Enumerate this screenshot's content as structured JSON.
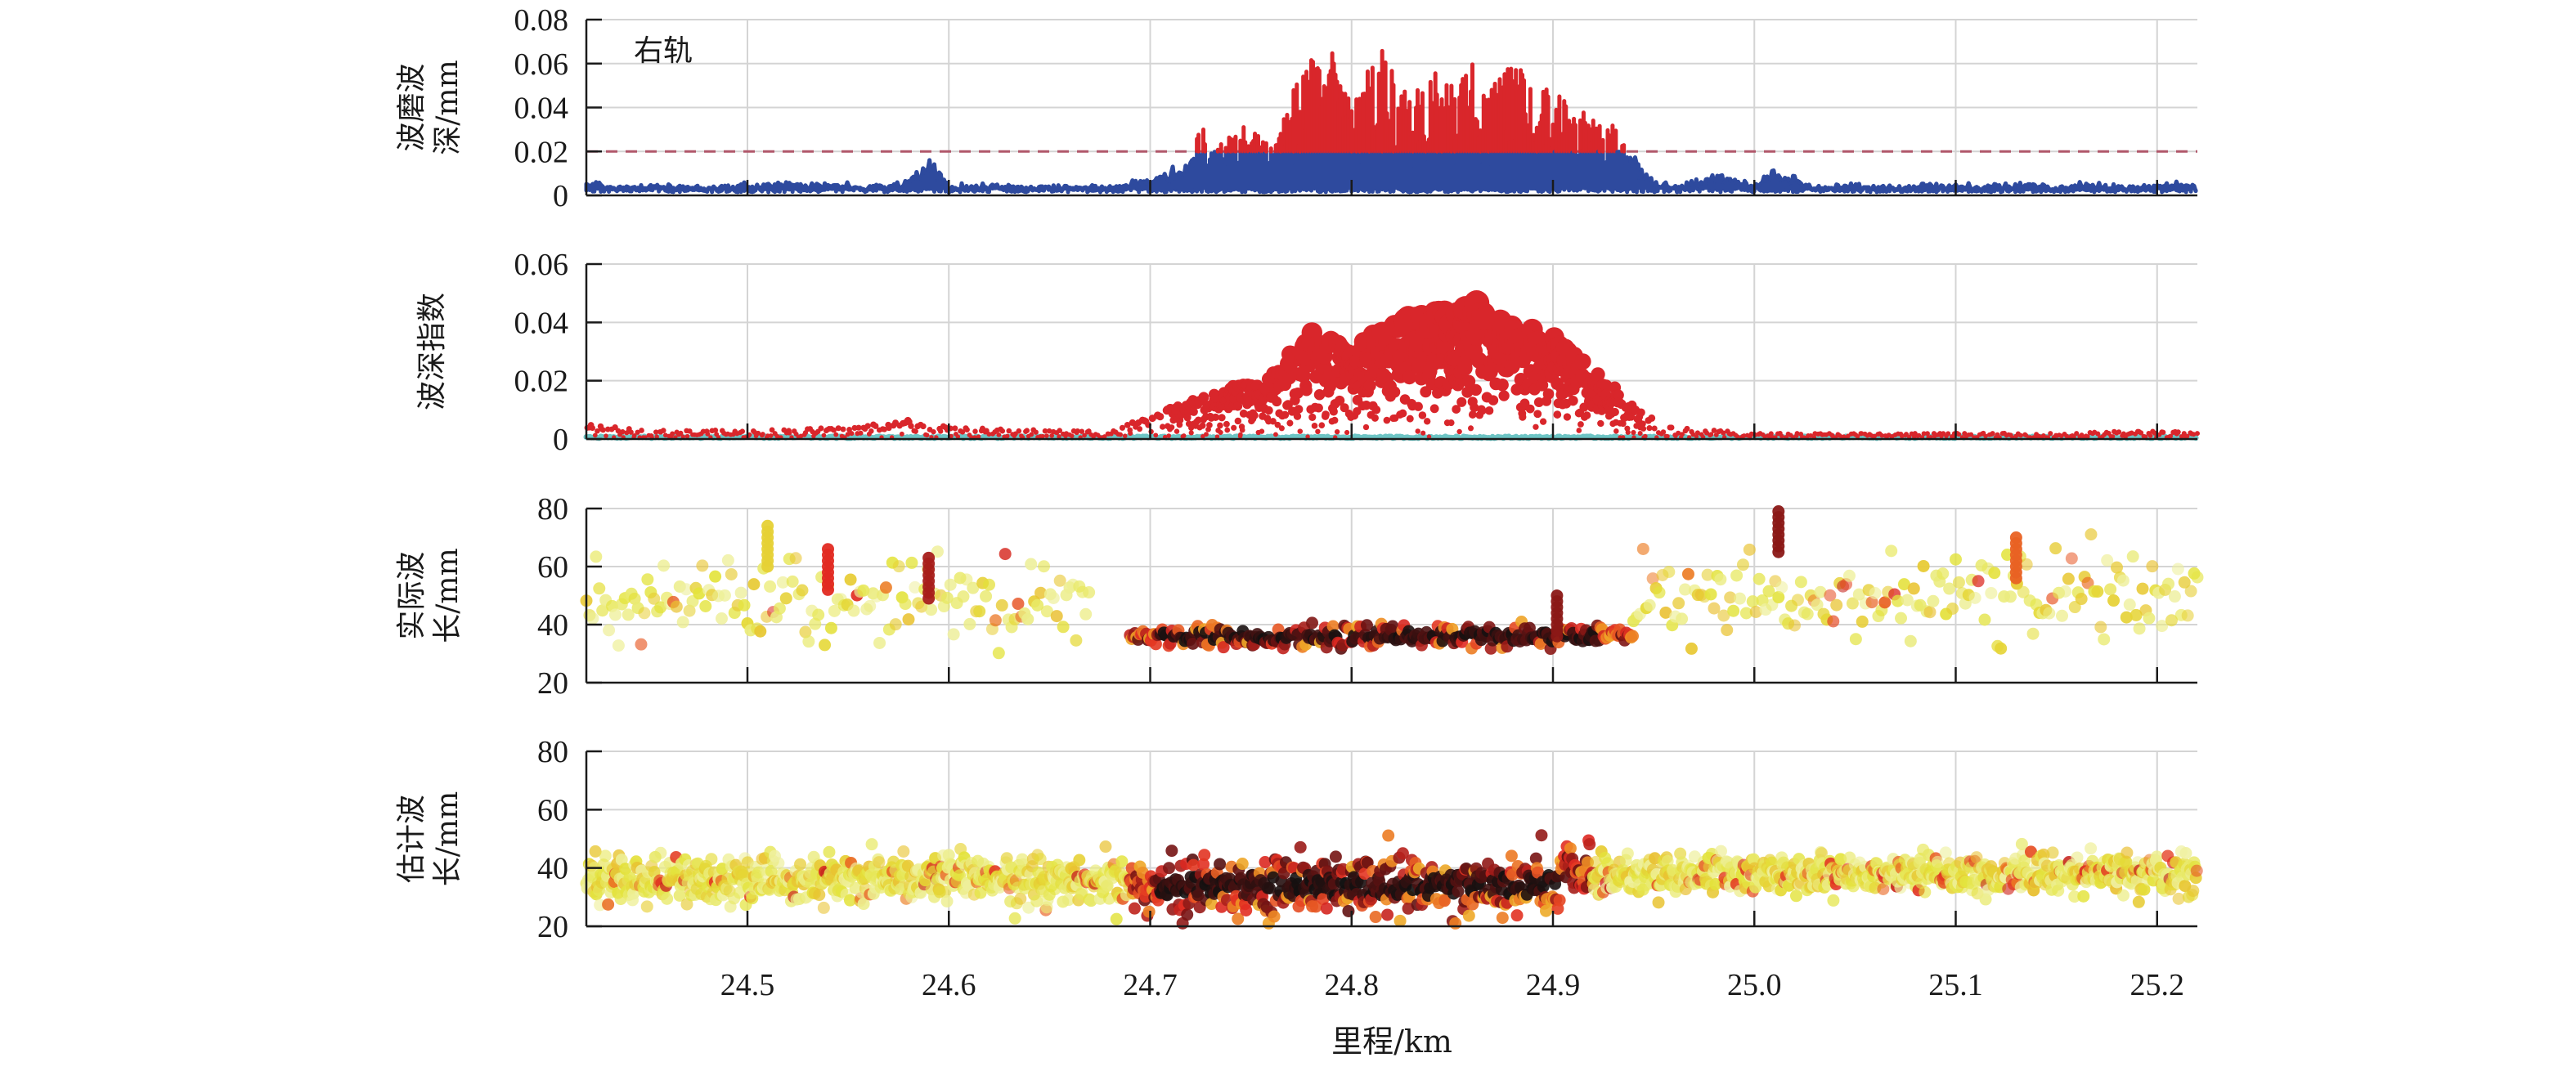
{
  "chart_data": [
    {
      "type": "line",
      "panel": 1,
      "ylabel_lines": [
        "波磨波",
        "深/mm"
      ],
      "annotation": "右轨",
      "ylim": [
        0,
        0.08
      ],
      "yticks": [
        0,
        0.02,
        0.04,
        0.06,
        0.08
      ],
      "ytick_labels": [
        "0",
        "0.02",
        "0.04",
        "0.06",
        "0.08"
      ],
      "xlim": [
        24.42,
        25.22
      ],
      "grid": true,
      "threshold": {
        "value": 0.02,
        "style": "dashed",
        "color": "#b0576a"
      },
      "series": [
        {
          "name": "below-threshold",
          "color": "#2e4a9e"
        },
        {
          "name": "above-threshold",
          "color": "#d9262b"
        }
      ],
      "x": [
        24.42,
        24.44,
        24.46,
        24.48,
        24.5,
        24.52,
        24.54,
        24.56,
        24.58,
        24.59,
        24.6,
        24.62,
        24.64,
        24.66,
        24.68,
        24.69,
        24.7,
        24.71,
        24.72,
        24.725,
        24.73,
        24.74,
        24.75,
        24.76,
        24.77,
        24.78,
        24.785,
        24.79,
        24.8,
        24.81,
        24.815,
        24.82,
        24.83,
        24.84,
        24.85,
        24.86,
        24.87,
        24.88,
        24.89,
        24.9,
        24.91,
        24.92,
        24.93,
        24.94,
        24.95,
        24.96,
        24.98,
        25.0,
        25.01,
        25.03,
        25.05,
        25.07,
        25.09,
        25.11,
        25.13,
        25.15,
        25.17,
        25.19,
        25.21,
        25.22
      ],
      "values": [
        0.006,
        0.004,
        0.005,
        0.004,
        0.005,
        0.006,
        0.005,
        0.004,
        0.006,
        0.018,
        0.004,
        0.005,
        0.004,
        0.005,
        0.004,
        0.006,
        0.008,
        0.012,
        0.016,
        0.034,
        0.02,
        0.03,
        0.032,
        0.022,
        0.046,
        0.071,
        0.055,
        0.066,
        0.04,
        0.064,
        0.071,
        0.058,
        0.044,
        0.058,
        0.052,
        0.06,
        0.056,
        0.062,
        0.052,
        0.048,
        0.044,
        0.036,
        0.032,
        0.018,
        0.006,
        0.004,
        0.01,
        0.005,
        0.012,
        0.004,
        0.005,
        0.004,
        0.005,
        0.004,
        0.006,
        0.004,
        0.005,
        0.004,
        0.006,
        0.005
      ]
    },
    {
      "type": "scatter",
      "panel": 2,
      "ylabel_lines": [
        "波深指数"
      ],
      "ylim": [
        0,
        0.06
      ],
      "yticks": [
        0,
        0.02,
        0.04,
        0.06
      ],
      "ytick_labels": [
        "0",
        "0.02",
        "0.04",
        "0.06"
      ],
      "xlim": [
        24.42,
        25.22
      ],
      "grid": true,
      "series": [
        {
          "name": "index",
          "color": "#d9262b"
        },
        {
          "name": "baseline",
          "color": "#6cc4c4"
        }
      ],
      "envelope_x": [
        24.42,
        24.45,
        24.5,
        24.55,
        24.58,
        24.6,
        24.65,
        24.68,
        24.7,
        24.72,
        24.74,
        24.76,
        24.78,
        24.8,
        24.82,
        24.84,
        24.86,
        24.88,
        24.9,
        24.92,
        24.94,
        24.96,
        25.0,
        25.05,
        25.1,
        25.15,
        25.2,
        25.22
      ],
      "envelope_max": [
        0.005,
        0.003,
        0.003,
        0.004,
        0.007,
        0.004,
        0.003,
        0.003,
        0.008,
        0.013,
        0.018,
        0.022,
        0.038,
        0.03,
        0.042,
        0.046,
        0.049,
        0.04,
        0.036,
        0.024,
        0.012,
        0.004,
        0.002,
        0.002,
        0.002,
        0.002,
        0.003,
        0.002
      ]
    },
    {
      "type": "scatter",
      "panel": 3,
      "ylabel_lines": [
        "实际波",
        "长/mm"
      ],
      "ylim": [
        20,
        80
      ],
      "yticks": [
        20,
        40,
        60,
        80
      ],
      "ytick_labels": [
        "20",
        "40",
        "60",
        "80"
      ],
      "xlim": [
        24.42,
        25.22
      ],
      "grid": true,
      "colormap": [
        "#f3f5c8",
        "#e3e33a",
        "#f09a24",
        "#e12a22",
        "#6e1212",
        "#111111"
      ],
      "clusters": [
        {
          "x0": 24.42,
          "x1": 24.67,
          "center": 48,
          "spread": 8,
          "intensity": 0.25
        },
        {
          "x0": 24.69,
          "x1": 24.94,
          "center": 36,
          "spread": 3,
          "intensity": 0.95
        },
        {
          "x0": 24.94,
          "x1": 25.22,
          "center": 48,
          "spread": 8,
          "intensity": 0.25
        }
      ],
      "outliers": [
        {
          "x": 25.012,
          "y": 79,
          "intensity": 0.75
        },
        {
          "x": 24.59,
          "y": 63,
          "intensity": 0.7
        },
        {
          "x": 24.54,
          "y": 66,
          "intensity": 0.6
        },
        {
          "x": 24.51,
          "y": 74,
          "intensity": 0.25
        },
        {
          "x": 24.902,
          "y": 50,
          "intensity": 0.75
        },
        {
          "x": 25.13,
          "y": 70,
          "intensity": 0.5
        }
      ]
    },
    {
      "type": "scatter",
      "panel": 4,
      "ylabel_lines": [
        "估计波",
        "长/mm"
      ],
      "ylim": [
        20,
        80
      ],
      "yticks": [
        20,
        40,
        60,
        80
      ],
      "ytick_labels": [
        "20",
        "40",
        "60",
        "80"
      ],
      "xlim": [
        24.42,
        25.22
      ],
      "grid": true,
      "colormap": [
        "#f3f5c8",
        "#e3e33a",
        "#f09a24",
        "#e12a22",
        "#6e1212",
        "#111111"
      ],
      "clusters": [
        {
          "x0": 24.42,
          "x1": 24.69,
          "center": 36,
          "spread": 5,
          "intensity": 0.2
        },
        {
          "x0": 24.69,
          "x1": 24.92,
          "center": 34,
          "spread": 6,
          "intensity": 0.85
        },
        {
          "x0": 24.92,
          "x1": 25.22,
          "center": 38,
          "spread": 4,
          "intensity": 0.2
        }
      ],
      "xticks": [
        24.5,
        24.6,
        24.7,
        24.8,
        24.9,
        25.0,
        25.1,
        25.2
      ],
      "xtick_labels": [
        "24.5",
        "24.6",
        "24.7",
        "24.8",
        "24.9",
        "25.0",
        "25.1",
        "25.2"
      ],
      "xlabel": "里程/km"
    }
  ]
}
